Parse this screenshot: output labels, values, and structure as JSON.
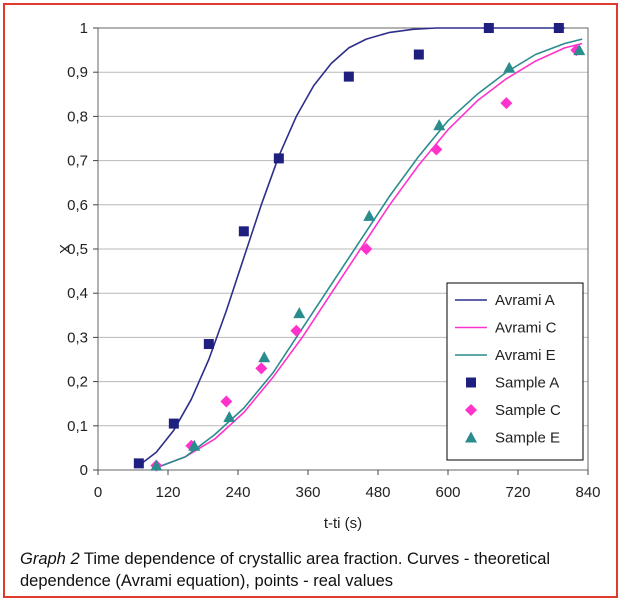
{
  "chart_data": {
    "type": "scatter",
    "xlabel": "t-ti (s)",
    "ylabel": "X",
    "xlim": [
      0,
      840
    ],
    "ylim": [
      0,
      1
    ],
    "xticks": [
      "0",
      "120",
      "240",
      "360",
      "480",
      "600",
      "720",
      "840"
    ],
    "yticks": [
      "0",
      "0,1",
      "0,2",
      "0,3",
      "0,4",
      "0,5",
      "0,6",
      "0,7",
      "0,8",
      "0,9",
      "1"
    ],
    "grid": "horizontal",
    "legend_position": "bottom-right",
    "colors": {
      "A": "#2e2e8c",
      "C": "#ff33cc",
      "E": "#2a8c8c"
    },
    "series": [
      {
        "name": "Avrami A",
        "kind": "line",
        "color": "#2e2e8c",
        "x": [
          70,
          100,
          130,
          160,
          190,
          220,
          250,
          280,
          310,
          340,
          370,
          400,
          430,
          460,
          500,
          540,
          580,
          620,
          700,
          800
        ],
        "y": [
          0.01,
          0.04,
          0.09,
          0.16,
          0.25,
          0.36,
          0.48,
          0.6,
          0.71,
          0.8,
          0.87,
          0.92,
          0.955,
          0.975,
          0.99,
          0.997,
          1,
          1,
          1,
          1
        ]
      },
      {
        "name": "Avrami C",
        "kind": "line",
        "color": "#ff33cc",
        "x": [
          100,
          150,
          200,
          250,
          300,
          350,
          400,
          450,
          500,
          550,
          600,
          650,
          700,
          750,
          800,
          830
        ],
        "y": [
          0.005,
          0.03,
          0.07,
          0.13,
          0.21,
          0.3,
          0.4,
          0.5,
          0.6,
          0.69,
          0.77,
          0.835,
          0.885,
          0.925,
          0.955,
          0.965
        ]
      },
      {
        "name": "Avrami E",
        "kind": "line",
        "color": "#2a8c8c",
        "x": [
          100,
          150,
          200,
          250,
          300,
          350,
          400,
          450,
          500,
          550,
          600,
          650,
          700,
          750,
          800,
          830
        ],
        "y": [
          0.005,
          0.03,
          0.08,
          0.14,
          0.22,
          0.32,
          0.42,
          0.52,
          0.62,
          0.71,
          0.79,
          0.85,
          0.9,
          0.94,
          0.965,
          0.975
        ]
      },
      {
        "name": "Sample A",
        "kind": "points",
        "marker": "square",
        "color": "#1f1f80",
        "x": [
          70,
          130,
          190,
          250,
          310,
          430,
          550,
          670,
          790
        ],
        "y": [
          0.015,
          0.105,
          0.285,
          0.54,
          0.705,
          0.89,
          0.94,
          1.0,
          1.0
        ]
      },
      {
        "name": "Sample C",
        "kind": "points",
        "marker": "diamond",
        "color": "#ff33cc",
        "x": [
          100,
          160,
          220,
          280,
          340,
          460,
          580,
          700,
          820
        ],
        "y": [
          0.01,
          0.055,
          0.155,
          0.23,
          0.315,
          0.5,
          0.725,
          0.83,
          0.95
        ]
      },
      {
        "name": "Sample E",
        "kind": "points",
        "marker": "triangle",
        "color": "#2a8c8c",
        "x": [
          100,
          165,
          225,
          285,
          345,
          465,
          585,
          705,
          825
        ],
        "y": [
          0.01,
          0.055,
          0.12,
          0.255,
          0.355,
          0.575,
          0.78,
          0.91,
          0.95
        ]
      }
    ]
  },
  "caption": {
    "lead": "Graph 2",
    "text": " Time dependence of crystallic area fraction. Curves - theoretical dependence (Avrami equation), points - real values"
  }
}
